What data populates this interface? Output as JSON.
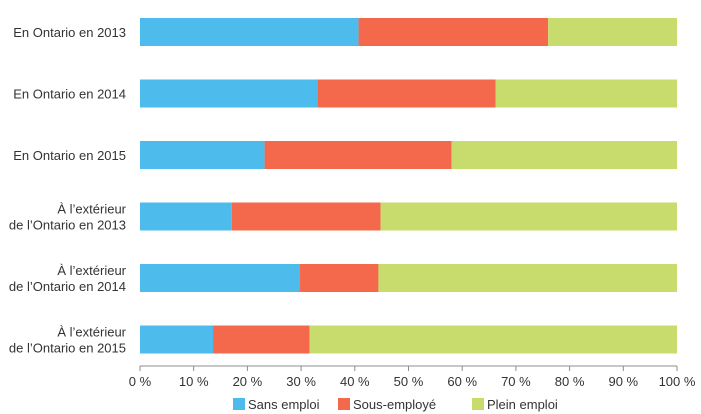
{
  "chart_data": {
    "type": "bar",
    "orientation": "horizontal",
    "stacked": true,
    "title": "",
    "xlabel": "",
    "ylabel": "",
    "xlim": [
      0,
      100
    ],
    "x_ticks": [
      "0 %",
      "10 %",
      "20 %",
      "30 %",
      "40 %",
      "50 %",
      "60 %",
      "70 %",
      "80 %",
      "90 %",
      "100 %"
    ],
    "categories": [
      [
        "En Ontario en 2013"
      ],
      [
        "En Ontario en 2014"
      ],
      [
        "En Ontario en 2015"
      ],
      [
        "À l’extérieur",
        "de l’Ontario en 2013"
      ],
      [
        "À l’extérieur",
        "de l’Ontario en 2014"
      ],
      [
        "À l’extérieur",
        "de l’Ontario en 2015"
      ]
    ],
    "series": [
      {
        "name": "Sans emploi",
        "color": "#4DBBEB",
        "values": [
          40.7,
          33.0,
          23.2,
          17.1,
          29.8,
          13.6
        ]
      },
      {
        "name": "Sous-employé",
        "color": "#F4694B",
        "values": [
          35.3,
          33.2,
          34.8,
          27.7,
          14.6,
          18.0
        ]
      },
      {
        "name": "Plein emploi",
        "color": "#C7DC6D",
        "values": [
          24.0,
          33.8,
          42.0,
          55.2,
          55.6,
          68.4
        ]
      }
    ],
    "grid": false,
    "legend": "bottom"
  }
}
